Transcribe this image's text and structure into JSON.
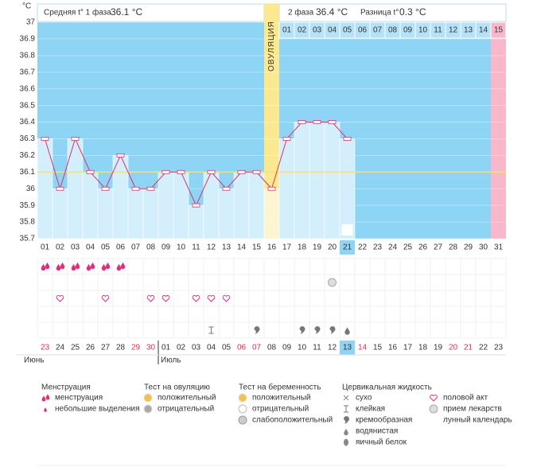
{
  "header": {
    "phase1_label": "Средняя t° 1 фаза",
    "phase1_value": "36.1 °C",
    "phase2_label": "2 фаза",
    "phase2_value": "36.4 °C",
    "diff_label": "Разница t°",
    "diff_value": "0.3 °C"
  },
  "chart_data": {
    "type": "line",
    "y_label": "°C",
    "ovulation_label": "ОВУЛЯЦИЯ",
    "categories": [
      "01",
      "02",
      "03",
      "04",
      "05",
      "06",
      "07",
      "08",
      "09",
      "10",
      "11",
      "12",
      "13",
      "14",
      "15",
      "16",
      "17",
      "18",
      "19",
      "20",
      "21",
      "22",
      "23",
      "24",
      "25",
      "26",
      "27",
      "28",
      "29",
      "30",
      "31"
    ],
    "values": [
      36.3,
      36.0,
      36.3,
      36.1,
      36.0,
      36.2,
      36.0,
      36.0,
      36.1,
      36.1,
      35.9,
      36.1,
      36.0,
      36.1,
      36.1,
      36.0,
      36.3,
      36.4,
      36.4,
      36.4,
      36.3,
      null,
      null,
      null,
      null,
      null,
      null,
      null,
      null,
      null,
      null
    ],
    "color": "#d9336d",
    "coverline": 36.1,
    "ylim": [
      35.7,
      37
    ],
    "yticks": [
      35.7,
      35.8,
      35.9,
      36,
      36.1,
      36.2,
      36.3,
      36.4,
      36.5,
      36.6,
      36.7,
      36.8,
      36.9,
      37
    ],
    "grid": true,
    "phase2_days": [
      "01",
      "02",
      "03",
      "04",
      "05",
      "06",
      "07",
      "08",
      "09",
      "10",
      "11",
      "12",
      "13",
      "14",
      "15"
    ]
  },
  "calendar": {
    "dates": [
      "23",
      "24",
      "25",
      "26",
      "27",
      "28",
      "29",
      "30",
      "01",
      "02",
      "03",
      "04",
      "05",
      "06",
      "07",
      "08",
      "09",
      "10",
      "11",
      "12",
      "13",
      "14",
      "15",
      "16",
      "17",
      "18",
      "19",
      "20",
      "21",
      "22",
      "23"
    ],
    "months": [
      "Июнь",
      "Июль"
    ]
  },
  "legend": [
    {
      "title": "Менструация",
      "items": [
        "менструация",
        "небольшие выделения"
      ]
    },
    {
      "title": "Тест на овуляцию",
      "items": [
        "положительный",
        "отрицательный"
      ]
    },
    {
      "title": "Тест на беременность",
      "items": [
        "положительный",
        "отрицательный",
        "слабоположительный"
      ]
    },
    {
      "title": "Цервикальная жидкость",
      "items": [
        "сухо",
        "клейкая",
        "кремообразная",
        "водянистая",
        "яичный белок"
      ]
    },
    {
      "items": [
        "половой акт",
        "прием лекарств",
        "лунный календарь"
      ]
    }
  ]
}
